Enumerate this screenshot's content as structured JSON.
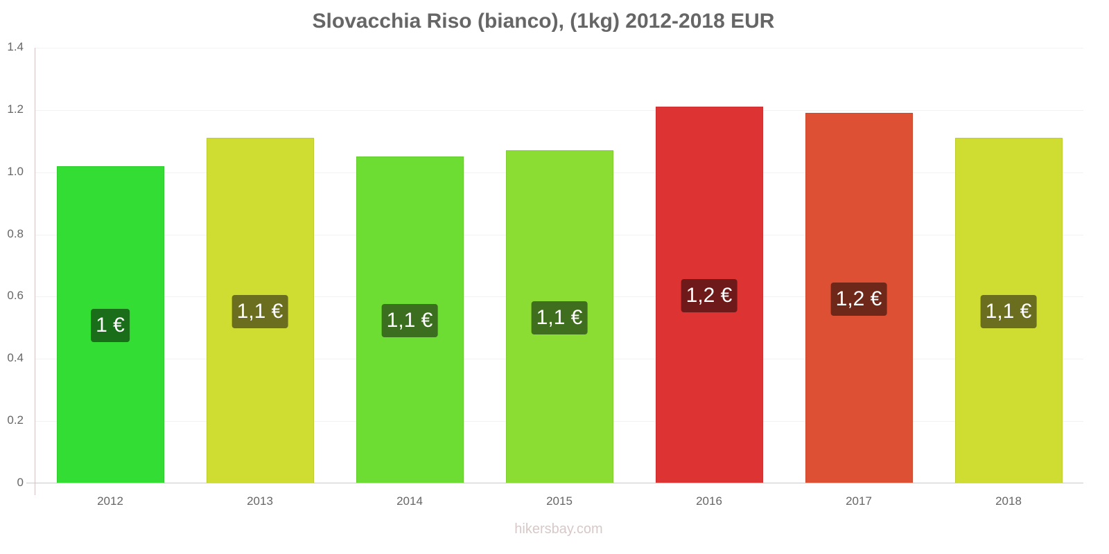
{
  "chart_data": {
    "type": "bar",
    "title": "Slovacchia Riso (bianco), (1kg) 2012-2018 EUR",
    "xlabel": "",
    "ylabel": "",
    "ylim": [
      0,
      1.4
    ],
    "grid": true,
    "legend": "none",
    "categories": [
      "2012",
      "2013",
      "2014",
      "2015",
      "2016",
      "2017",
      "2018"
    ],
    "values": [
      1.02,
      1.11,
      1.05,
      1.07,
      1.21,
      1.19,
      1.11
    ],
    "data_labels": [
      "1 €",
      "1,1 €",
      "1,1 €",
      "1,1 €",
      "1,2 €",
      "1,2 €",
      "1,1 €"
    ],
    "bar_colors": [
      "#33dd33",
      "#cfdd33",
      "#6ddd33",
      "#8bdd33",
      "#dd3333",
      "#dd5033",
      "#cfdd33"
    ],
    "label_colors": [
      "#1a6e1a",
      "#6b6e1e",
      "#3b6e1e",
      "#3f6e1e",
      "#6e1a1a",
      "#6e281a",
      "#6b6e1e"
    ],
    "yticks": [
      "0",
      "0.2",
      "0.4",
      "0.6",
      "0.8",
      "1.0",
      "1.2",
      "1.4"
    ]
  },
  "watermark": "hikersbay.com"
}
